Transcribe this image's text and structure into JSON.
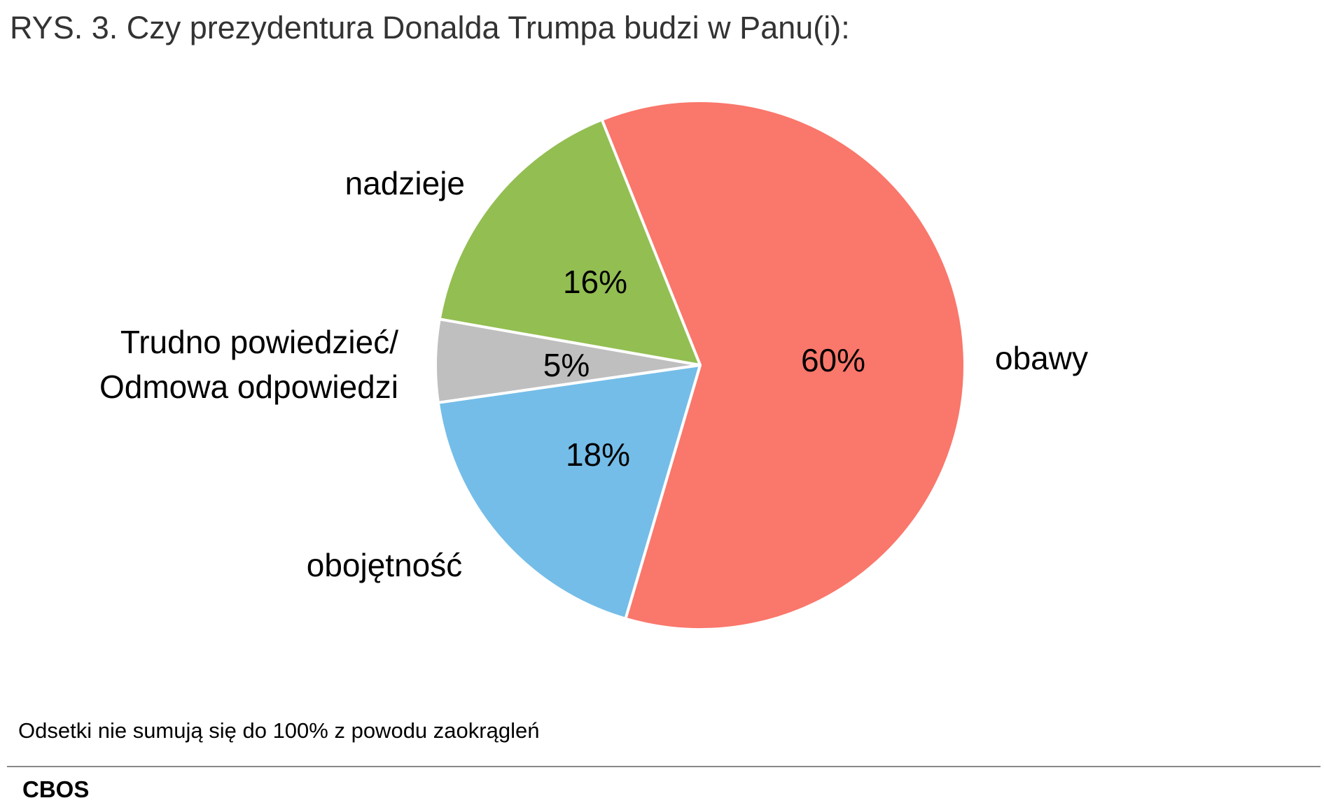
{
  "title": "RYS. 3. Czy prezydentura Donalda Trumpa budzi w Panu(i):",
  "chart_data": {
    "type": "pie",
    "title": "RYS. 3. Czy prezydentura Donalda Trumpa budzi w Panu(i):",
    "slices": [
      {
        "label": "obawy",
        "value": 60,
        "value_label": "60%",
        "color": "#FA776B"
      },
      {
        "label": "obojętność",
        "value": 18,
        "value_label": "18%",
        "color": "#74BDE8"
      },
      {
        "label": "Trudno powiedzieć/ Odmowa odpowiedzi",
        "label_lines": [
          "Trudno powiedzieć/",
          "Odmowa odpowiedzi"
        ],
        "value": 5,
        "value_label": "5%",
        "color": "#BFBFBF"
      },
      {
        "label": "nadzieje",
        "value": 16,
        "value_label": "16%",
        "color": "#93BE52"
      }
    ],
    "direction": "clockwise",
    "legend": "none (direct labels)"
  },
  "footnote": "Odsetki nie sumują się do 100% z powodu zaokrągleń",
  "source_logo": "CBOS"
}
